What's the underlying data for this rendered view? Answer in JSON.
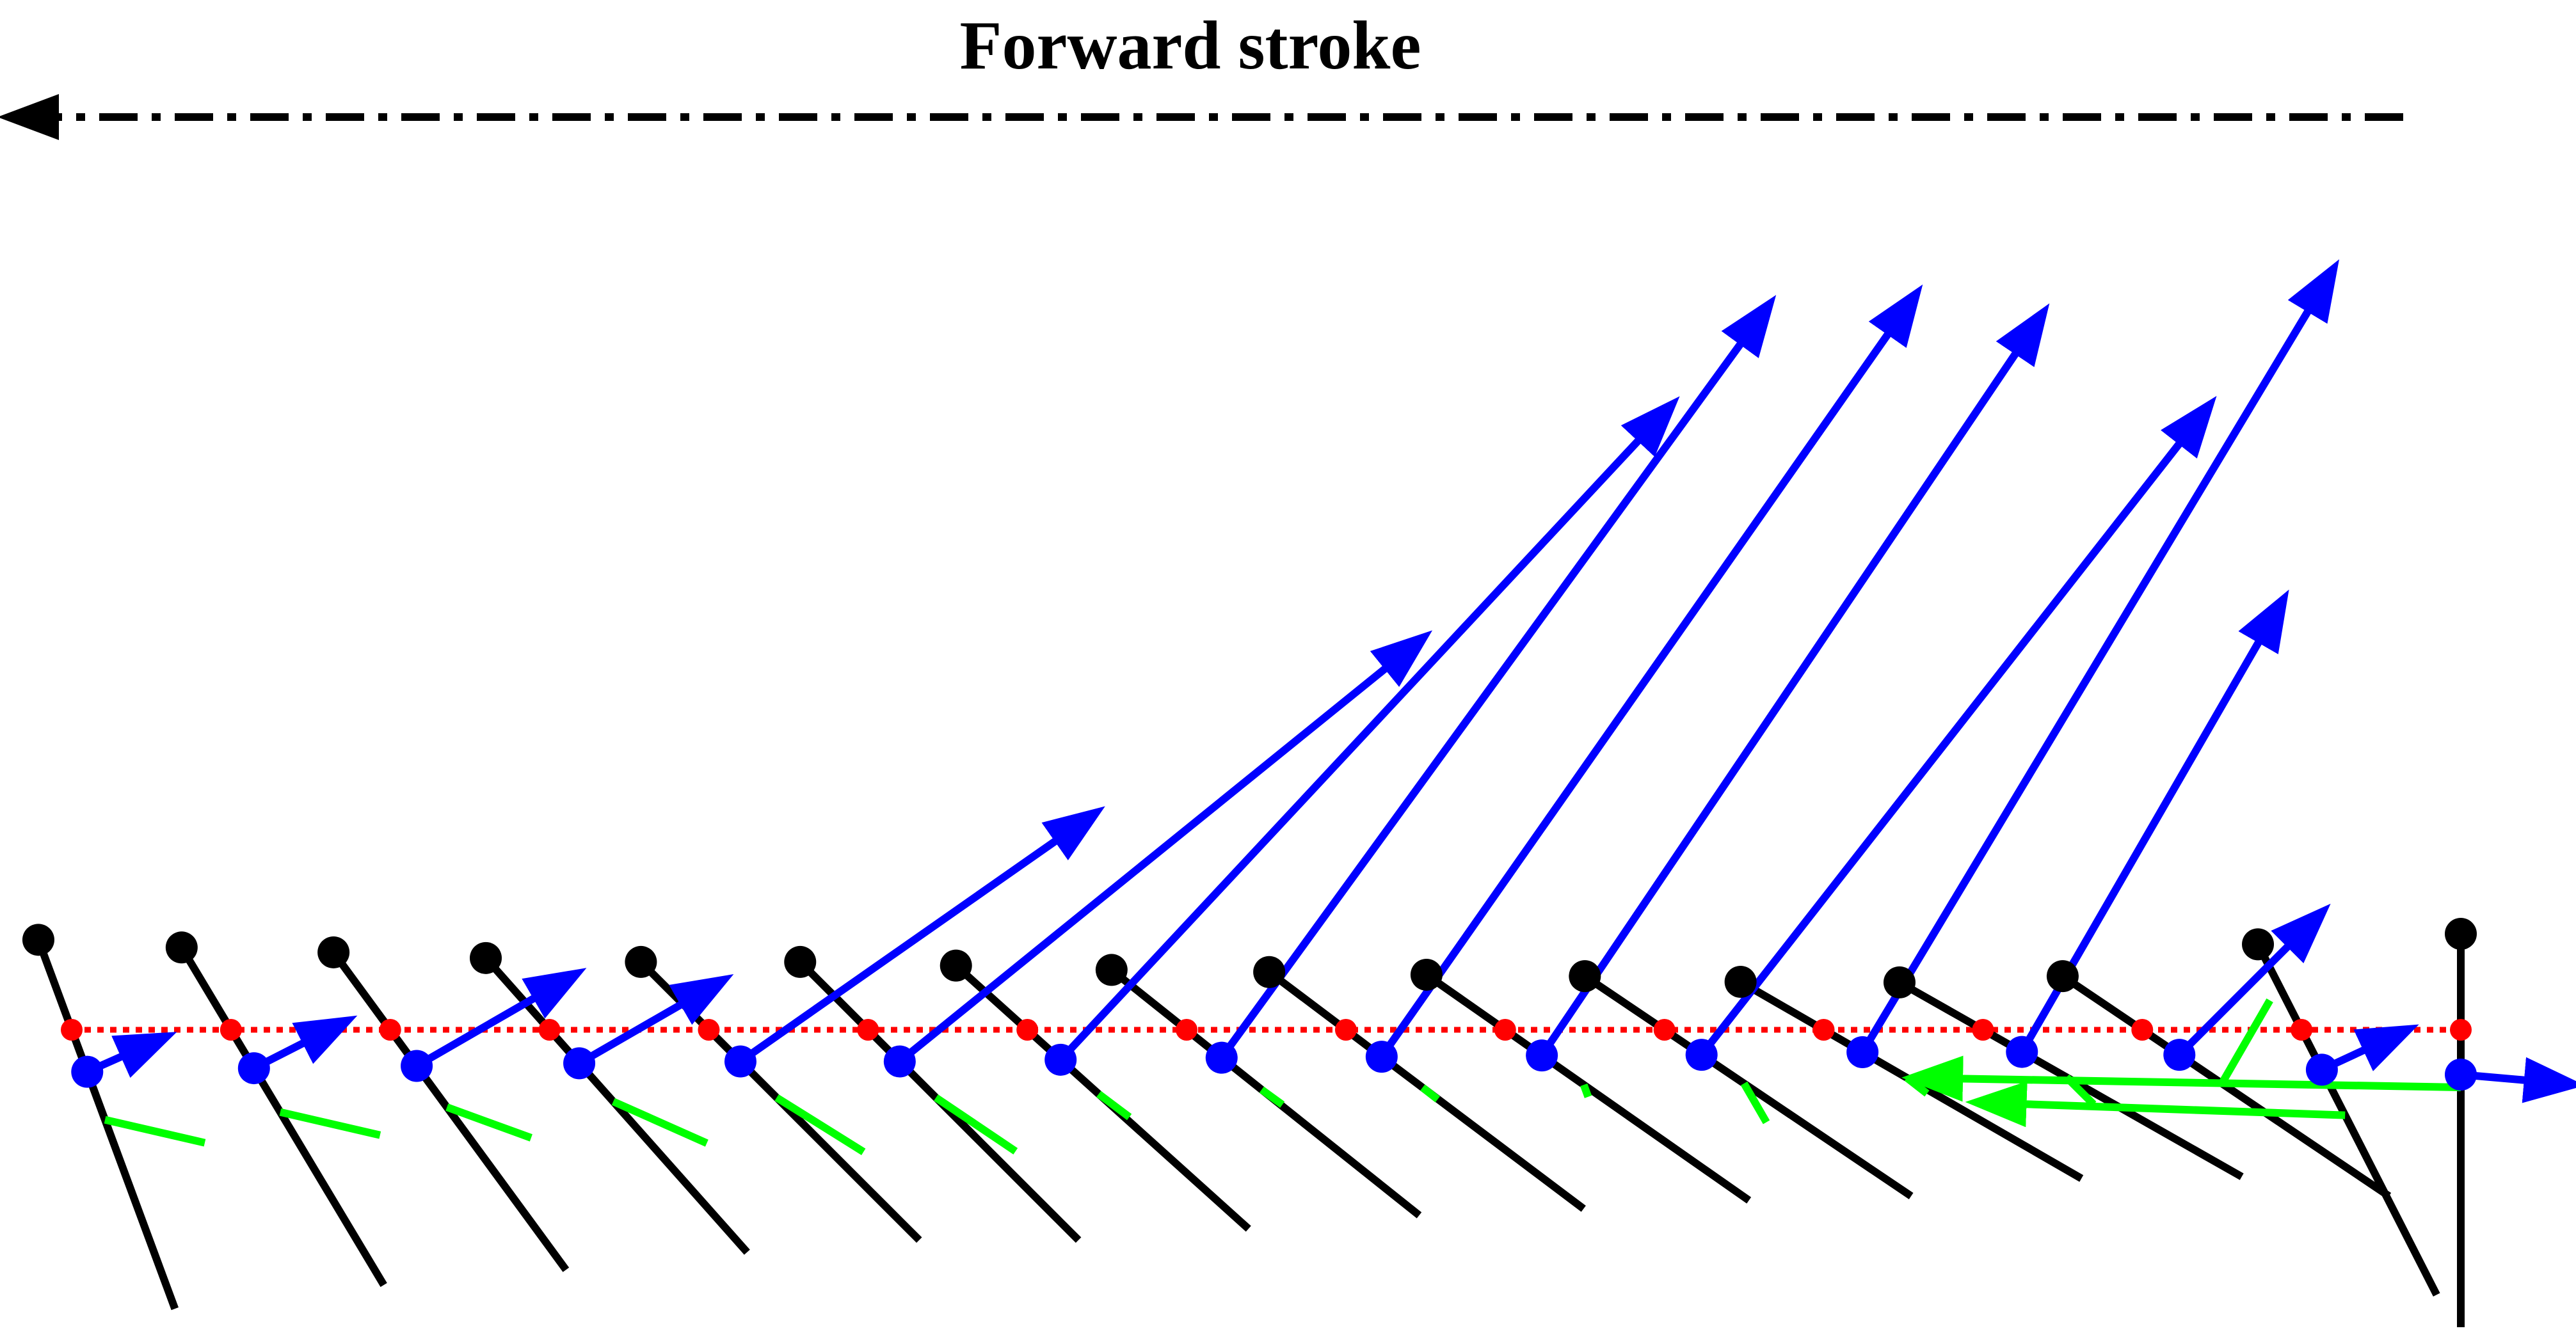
{
  "title": "Forward stroke",
  "direction_arrow": {
    "direction": "left",
    "style": "dash-dot"
  },
  "colors": {
    "wing": "#000000",
    "leading_edge": "#000000",
    "pivot_line": "#ff0000",
    "pivot": "#ff0000",
    "center": "#0000ff",
    "force_vector": "#0000ff",
    "secondary_vector": "#00ff00",
    "direction_arrow": "#000000"
  },
  "poses": [
    {
      "id": 1,
      "angle_deg": -20.3,
      "force": {
        "mag": 0.05,
        "angle_deg": 24.0
      },
      "secondary": {
        "mag": 0.16,
        "angle_deg": -13.0
      }
    },
    {
      "id": 2,
      "angle_deg": -30.9,
      "force": {
        "mag": 0.07,
        "angle_deg": 27.0
      },
      "secondary": {
        "mag": 0.16,
        "angle_deg": -13.0
      }
    },
    {
      "id": 3,
      "angle_deg": -36.2,
      "force": {
        "mag": 0.16,
        "angle_deg": 30.0
      },
      "secondary": {
        "mag": 0.14,
        "angle_deg": -20.0
      }
    },
    {
      "id": 4,
      "angle_deg": -41.6,
      "force": {
        "mag": 0.14,
        "angle_deg": 30.0
      },
      "secondary": {
        "mag": 0.16,
        "angle_deg": -24.0
      }
    },
    {
      "id": 5,
      "angle_deg": -45.0,
      "force": {
        "mag": 0.44,
        "angle_deg": 35.0
      },
      "secondary": {
        "mag": 0.16,
        "angle_deg": -32.0
      }
    },
    {
      "id": 6,
      "angle_deg": -45.0,
      "force": {
        "mag": 0.71,
        "angle_deg": 39.0
      },
      "secondary": {
        "mag": 0.15,
        "angle_deg": -34.0
      }
    },
    {
      "id": 7,
      "angle_deg": -48.0,
      "force": {
        "mag": 0.96,
        "angle_deg": 47.0
      },
      "secondary": {
        "mag": 0.06,
        "angle_deg": -37.0
      }
    },
    {
      "id": 8,
      "angle_deg": -51.4,
      "force": {
        "mag": 1.0,
        "angle_deg": 54.0
      },
      "secondary": {
        "mag": 0.04,
        "angle_deg": -36.0
      }
    },
    {
      "id": 9,
      "angle_deg": -53.0,
      "force": {
        "mag": 1.0,
        "angle_deg": 55.0
      },
      "secondary": {
        "mag": 0.03,
        "angle_deg": -38.0
      }
    },
    {
      "id": 10,
      "angle_deg": -55.0,
      "force": {
        "mag": 0.96,
        "angle_deg": 56.0
      },
      "secondary": {
        "mag": 0.02,
        "angle_deg": -70.0
      }
    },
    {
      "id": 11,
      "angle_deg": -56.0,
      "force": {
        "mag": 0.88,
        "angle_deg": 52.0
      },
      "secondary": {
        "mag": 0.07,
        "angle_deg": -60.0
      }
    },
    {
      "id": 12,
      "angle_deg": -60.0,
      "force": {
        "mag": 0.98,
        "angle_deg": 59.0
      },
      "secondary": {
        "mag": 0.04,
        "angle_deg": -38.0
      }
    },
    {
      "id": 13,
      "angle_deg": -60.4,
      "force": {
        "mag": 0.54,
        "angle_deg": 60.0
      },
      "secondary": {
        "mag": 0.06,
        "angle_deg": -45.0
      }
    },
    {
      "id": 14,
      "angle_deg": -56.0,
      "force": {
        "mag": 0.18,
        "angle_deg": 45.0
      },
      "secondary": {
        "mag": 0.15,
        "angle_deg": 60.0
      }
    },
    {
      "id": 15,
      "angle_deg": -27.0,
      "force": {
        "mag": 0.06,
        "angle_deg": 25.0
      },
      "secondary": {
        "mag": 0.51,
        "angle_deg": 178.0
      }
    },
    {
      "id": 16,
      "angle_deg": 0.0,
      "force": {
        "mag": 0.08,
        "angle_deg": -5.0
      },
      "secondary": {
        "mag": 0.79,
        "angle_deg": 179.0
      }
    }
  ]
}
